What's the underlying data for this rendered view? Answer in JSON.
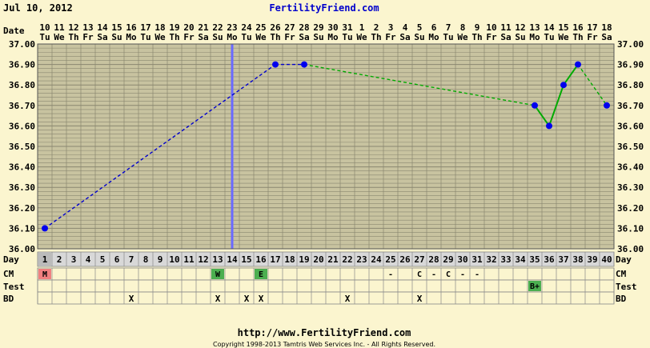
{
  "header": {
    "date": "Jul 10, 2012",
    "site": "FertilityFriend.com"
  },
  "footer": {
    "url": "http://www.FertilityFriend.com",
    "copyright": "Copyright 1998-2013 Tamtris Web Services Inc. - All Rights Reserved."
  },
  "row_labels": {
    "date": "Date",
    "day": "Day",
    "cm": "CM",
    "test": "Test",
    "bd": "BD"
  },
  "colors": {
    "background": "#fbf5cf",
    "plot_area": "#c8c3a0",
    "grid": "#8a8770",
    "dashed_line": "#0000cc",
    "solid_line": "#00aa00",
    "green_dashed": "#00aa00",
    "point": "#0000ee",
    "coverline": "#6a6aff",
    "period_box": "#f08080",
    "cm_box": "#4caf50",
    "test_box": "#4caf50",
    "day_row": "#d8d8d8"
  },
  "chart_data": {
    "type": "line",
    "title": "",
    "xlabel": "Day",
    "ylabel": "",
    "ylim": [
      36.0,
      37.0
    ],
    "y_ticks": [
      "36.00",
      "36.10",
      "36.20",
      "36.30",
      "36.40",
      "36.50",
      "36.60",
      "36.70",
      "36.80",
      "36.90",
      "37.00"
    ],
    "dates": [
      "10",
      "11",
      "12",
      "13",
      "14",
      "15",
      "16",
      "17",
      "18",
      "19",
      "20",
      "21",
      "22",
      "23",
      "24",
      "25",
      "26",
      "27",
      "28",
      "29",
      "30",
      "31",
      "1",
      "2",
      "3",
      "4",
      "5",
      "6",
      "7",
      "8",
      "9",
      "10",
      "11",
      "12",
      "13",
      "14",
      "15",
      "16",
      "17",
      "18"
    ],
    "weekdays": [
      "Tu",
      "We",
      "Th",
      "Fr",
      "Sa",
      "Su",
      "Mo",
      "Tu",
      "We",
      "Th",
      "Fr",
      "Sa",
      "Su",
      "Mo",
      "Tu",
      "We",
      "Th",
      "Fr",
      "Sa",
      "Su",
      "Mo",
      "Tu",
      "We",
      "Th",
      "Fr",
      "Sa",
      "Su",
      "Mo",
      "Tu",
      "We",
      "Th",
      "Fr",
      "Sa",
      "Su",
      "Mo",
      "Tu",
      "We",
      "Th",
      "Fr",
      "Sa"
    ],
    "days": [
      "1",
      "2",
      "3",
      "4",
      "5",
      "6",
      "7",
      "8",
      "9",
      "10",
      "11",
      "12",
      "13",
      "14",
      "15",
      "16",
      "17",
      "18",
      "19",
      "20",
      "21",
      "22",
      "23",
      "24",
      "25",
      "26",
      "27",
      "28",
      "29",
      "30",
      "31",
      "32",
      "33",
      "34",
      "35",
      "36",
      "37",
      "38",
      "39",
      "40"
    ],
    "temperatures": [
      {
        "day": 1,
        "temp": 36.1
      },
      {
        "day": 17,
        "temp": 36.9
      },
      {
        "day": 19,
        "temp": 36.9
      },
      {
        "day": 35,
        "temp": 36.7
      },
      {
        "day": 36,
        "temp": 36.6
      },
      {
        "day": 37,
        "temp": 36.8
      },
      {
        "day": 38,
        "temp": 36.9
      },
      {
        "day": 40,
        "temp": 36.7
      }
    ],
    "coverline_day": 14,
    "day_markers": [
      {
        "day": 1,
        "text": "M"
      },
      {
        "day": 13,
        "text": "W"
      },
      {
        "day": 16,
        "text": "E"
      }
    ],
    "cm": [
      {
        "day": 1,
        "text": "M"
      },
      {
        "day": 13,
        "text": "W"
      },
      {
        "day": 16,
        "text": "E"
      },
      {
        "day": 25,
        "text": "-"
      },
      {
        "day": 27,
        "text": "C"
      },
      {
        "day": 28,
        "text": "-"
      },
      {
        "day": 29,
        "text": "C"
      },
      {
        "day": 30,
        "text": "-"
      },
      {
        "day": 31,
        "text": "-"
      }
    ],
    "test": [
      {
        "day": 35,
        "text": "B+"
      }
    ],
    "bd": [
      {
        "day": 7,
        "text": "X"
      },
      {
        "day": 13,
        "text": "X"
      },
      {
        "day": 15,
        "text": "X"
      },
      {
        "day": 16,
        "text": "X"
      },
      {
        "day": 22,
        "text": "X"
      },
      {
        "day": 27,
        "text": "X"
      }
    ]
  }
}
